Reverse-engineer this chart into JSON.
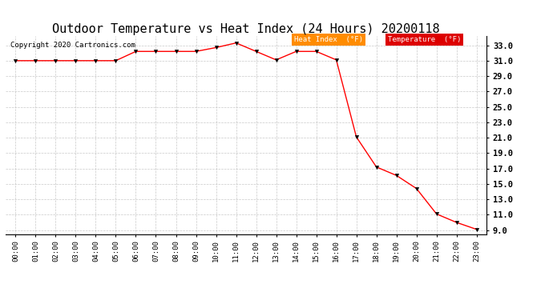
{
  "title": "Outdoor Temperature vs Heat Index (24 Hours) 20200118",
  "copyright": "Copyright 2020 Cartronics.com",
  "x_labels": [
    "00:00",
    "01:00",
    "02:00",
    "03:00",
    "04:00",
    "05:00",
    "06:00",
    "07:00",
    "08:00",
    "09:00",
    "10:00",
    "11:00",
    "12:00",
    "13:00",
    "14:00",
    "15:00",
    "16:00",
    "17:00",
    "18:00",
    "19:00",
    "20:00",
    "21:00",
    "22:00",
    "23:00"
  ],
  "heat_index": [
    31.0,
    31.0,
    31.0,
    31.0,
    31.0,
    31.0,
    32.2,
    32.2,
    32.2,
    32.2,
    32.7,
    33.3,
    32.2,
    31.1,
    32.2,
    32.2,
    31.1,
    21.1,
    17.2,
    16.1,
    14.4,
    11.1,
    10.0,
    9.1
  ],
  "y_ticks": [
    9.0,
    11.0,
    13.0,
    15.0,
    17.0,
    19.0,
    21.0,
    23.0,
    25.0,
    27.0,
    29.0,
    31.0,
    33.0
  ],
  "ylim": [
    8.5,
    34.2
  ],
  "line_color": "#ff0000",
  "marker_color": "#000000",
  "bg_color": "#ffffff",
  "plot_bg_color": "#ffffff",
  "grid_color": "#bbbbbb",
  "title_fontsize": 11,
  "legend_heat_bg": "#ff8c00",
  "legend_temp_bg": "#dd0000",
  "legend_text_color": "#ffffff"
}
